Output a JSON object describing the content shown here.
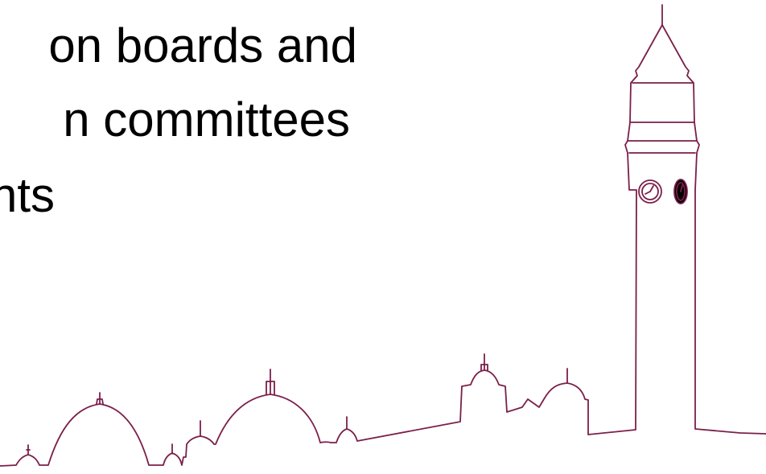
{
  "slide": {
    "bullet_lines": [
      "on boards and",
      "n committees",
      "nts"
    ]
  },
  "colors": {
    "background": "#ffffff",
    "text": "#000000",
    "skyline_stroke": "#7b1f4a"
  },
  "graphic": {
    "name": "university skyline with clock tower outline",
    "icons": [
      "clock-tower-icon",
      "clock-face-icon",
      "dome-icon"
    ]
  }
}
